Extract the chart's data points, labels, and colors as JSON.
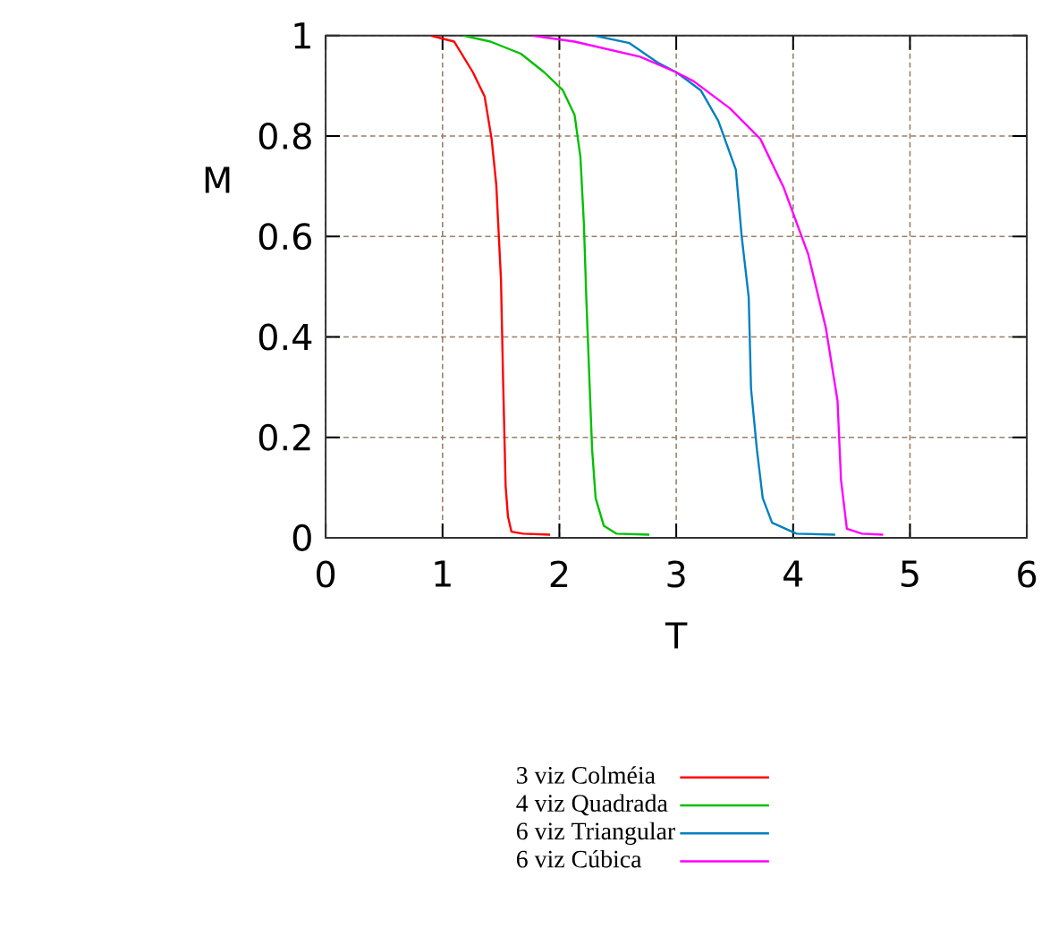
{
  "chart_data": {
    "type": "line",
    "xlabel": "T",
    "ylabel": "M",
    "xlim": [
      0,
      6
    ],
    "ylim": [
      0,
      1
    ],
    "xticks": [
      0,
      1,
      2,
      3,
      4,
      5,
      6
    ],
    "yticks": [
      0,
      0.2,
      0.4,
      0.6,
      0.8,
      1
    ],
    "grid": true,
    "legend": "bottom",
    "marker": "none",
    "line_style": "solid",
    "series": [
      {
        "name": "3 viz Colméia",
        "color": "#ff0000",
        "x": [
          0.9,
          1.1,
          1.26,
          1.36,
          1.42,
          1.46,
          1.5,
          1.52,
          1.54,
          1.56,
          1.59,
          1.69,
          1.92
        ],
        "values": [
          1,
          0.988,
          0.927,
          0.879,
          0.794,
          0.703,
          0.515,
          0.297,
          0.103,
          0.042,
          0.012,
          0.008,
          0.006
        ]
      },
      {
        "name": "4 viz Quadrada",
        "color": "#00c000",
        "x": [
          1.18,
          1.41,
          1.67,
          1.87,
          2.03,
          2.13,
          2.18,
          2.21,
          2.23,
          2.26,
          2.28,
          2.31,
          2.38,
          2.49,
          2.77
        ],
        "values": [
          1,
          0.988,
          0.964,
          0.927,
          0.891,
          0.842,
          0.758,
          0.624,
          0.479,
          0.297,
          0.176,
          0.079,
          0.024,
          0.008,
          0.006
        ]
      },
      {
        "name": "6 viz Triangular",
        "color": "#0080c0",
        "x": [
          2.3,
          2.6,
          2.85,
          3.0,
          3.21,
          3.36,
          3.51,
          3.56,
          3.62,
          3.64,
          3.69,
          3.74,
          3.82,
          4.03,
          4.36
        ],
        "values": [
          1,
          0.985,
          0.945,
          0.927,
          0.891,
          0.83,
          0.733,
          0.6,
          0.479,
          0.297,
          0.176,
          0.079,
          0.03,
          0.008,
          0.006
        ]
      },
      {
        "name": "6 viz Cúbica",
        "color": "#ff00ff",
        "x": [
          1.77,
          2.13,
          2.69,
          3.0,
          3.15,
          3.46,
          3.72,
          3.92,
          4.13,
          4.28,
          4.38,
          4.41,
          4.46,
          4.59,
          4.77
        ],
        "values": [
          1,
          0.988,
          0.958,
          0.927,
          0.909,
          0.855,
          0.794,
          0.697,
          0.564,
          0.418,
          0.273,
          0.115,
          0.018,
          0.008,
          0.006
        ]
      }
    ]
  }
}
